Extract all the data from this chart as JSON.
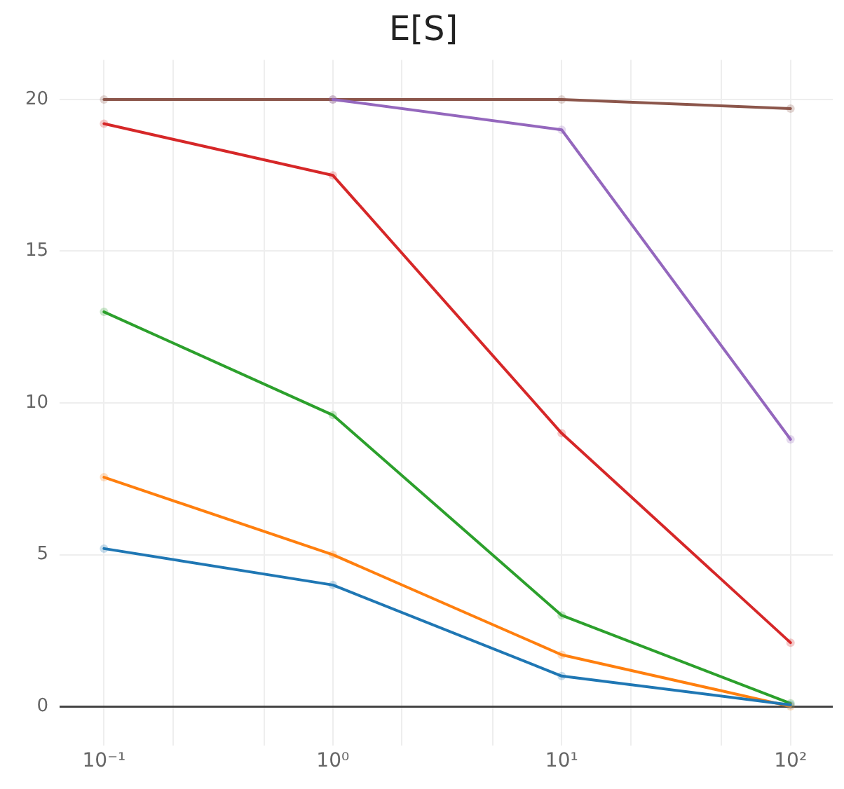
{
  "chart_data": {
    "type": "line",
    "title": "E[S]",
    "x": [
      0.1,
      1,
      10,
      100
    ],
    "series": [
      {
        "color": "#1f77b4",
        "values": [
          5.2,
          4.0,
          1.0,
          0.05
        ]
      },
      {
        "color": "#ff7f0e",
        "values": [
          7.55,
          5.0,
          1.7,
          0.0
        ]
      },
      {
        "color": "#2ca02c",
        "values": [
          13.0,
          9.6,
          3.0,
          0.1
        ]
      },
      {
        "color": "#d62728",
        "values": [
          19.2,
          17.5,
          9.0,
          2.1
        ]
      },
      {
        "color": "#9467bd",
        "values": [
          null,
          20.0,
          19.0,
          8.8
        ]
      },
      {
        "color": "#8c564b",
        "values": [
          20.0,
          20.0,
          20.0,
          19.7
        ]
      }
    ],
    "log": "x",
    "xlim": [
      0.064,
      153
    ],
    "ylim": [
      -1.3,
      21.3
    ],
    "xticks": [
      {
        "value": 0.1,
        "label": "10⁻¹"
      },
      {
        "value": 0.2,
        "label": null
      },
      {
        "value": 0.5,
        "label": null
      },
      {
        "value": 1,
        "label": "10⁰"
      },
      {
        "value": 2,
        "label": null
      },
      {
        "value": 5,
        "label": null
      },
      {
        "value": 10,
        "label": "10¹"
      },
      {
        "value": 20,
        "label": null
      },
      {
        "value": 50,
        "label": null
      },
      {
        "value": 100,
        "label": "10²"
      }
    ],
    "yticks": [
      0,
      5,
      10,
      15,
      20
    ],
    "grid": true,
    "legend": false,
    "marker": "circle",
    "line_style": "solid"
  }
}
